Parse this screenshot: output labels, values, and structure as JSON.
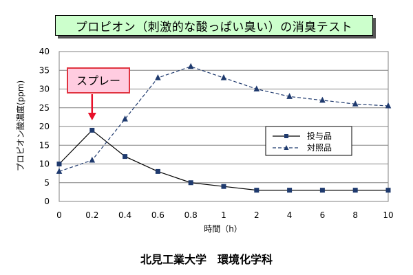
{
  "chart_data": {
    "type": "line",
    "title": "プロピオン（刺激的な酸っぱい臭い）の消臭テスト",
    "xlabel": "時間（h）",
    "ylabel": "プロピオン酸濃度(ppm)",
    "x": [
      "0",
      "0.2",
      "0.4",
      "0.6",
      "0.8",
      "1",
      "2",
      "4",
      "6",
      "8",
      "10"
    ],
    "ylim": [
      0,
      40
    ],
    "yticks": [
      "0",
      "5",
      "10",
      "15",
      "20",
      "25",
      "30",
      "35",
      "40"
    ],
    "grid": true,
    "legend_position": "right",
    "series": [
      {
        "name": "投与品",
        "values": [
          10,
          19,
          12,
          8,
          5,
          4,
          3,
          3,
          3,
          3,
          3
        ],
        "color": "#000000",
        "marker": "square",
        "dash": "solid"
      },
      {
        "name": "対照品",
        "values": [
          8,
          11,
          22,
          33,
          36,
          33,
          30,
          28,
          27,
          26,
          25.5
        ],
        "color": "#1f3a6e",
        "marker": "triangle",
        "dash": "dashed"
      }
    ],
    "annotations": [
      {
        "text": "スプレー",
        "x": "0.2",
        "border_color": "#e0333f",
        "fill": "#ffcce0",
        "arrow_color": "#e8102a"
      }
    ]
  },
  "footer": {
    "text": "北見工業大学　環境化学科"
  }
}
